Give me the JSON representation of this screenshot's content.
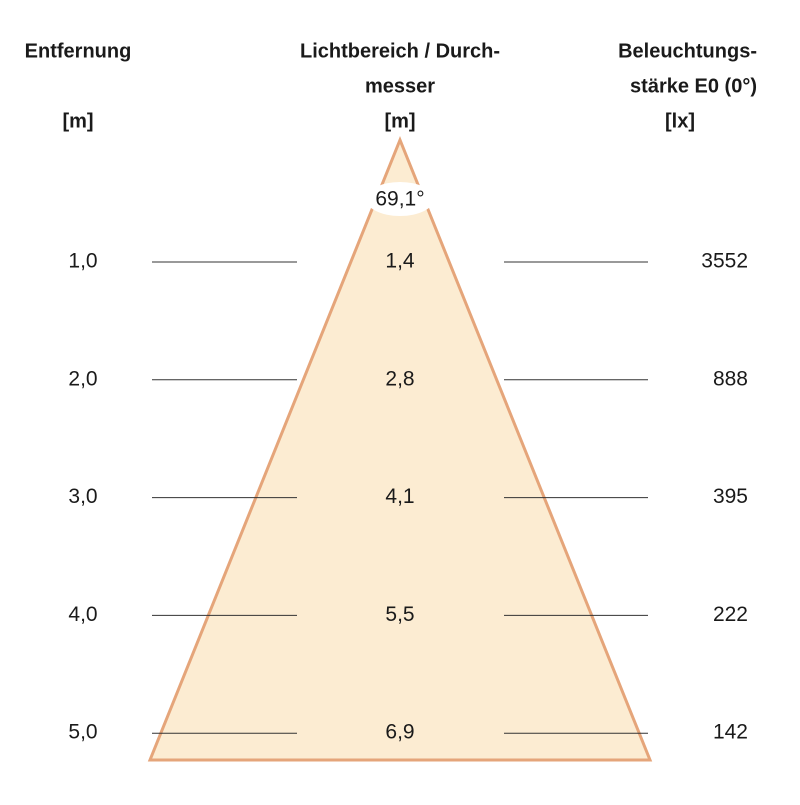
{
  "headers": [
    {
      "lines": [
        "Entfernung"
      ],
      "unit": "[m]"
    },
    {
      "lines": [
        "Lichtbereich / Durch-",
        "messer"
      ],
      "unit": "[m]"
    },
    {
      "lines": [
        "Beleuchtungs-",
        "stärke E0 (0°)"
      ],
      "unit": "[lx]"
    }
  ],
  "angle": "69,1°",
  "rows": [
    {
      "distance": "1,0",
      "diameter": "1,4",
      "illuminance": "3552"
    },
    {
      "distance": "2,0",
      "diameter": "2,8",
      "illuminance": "888"
    },
    {
      "distance": "3,0",
      "diameter": "4,1",
      "illuminance": "395"
    },
    {
      "distance": "4,0",
      "diameter": "5,5",
      "illuminance": "222"
    },
    {
      "distance": "5,0",
      "diameter": "6,9",
      "illuminance": "142"
    }
  ]
}
